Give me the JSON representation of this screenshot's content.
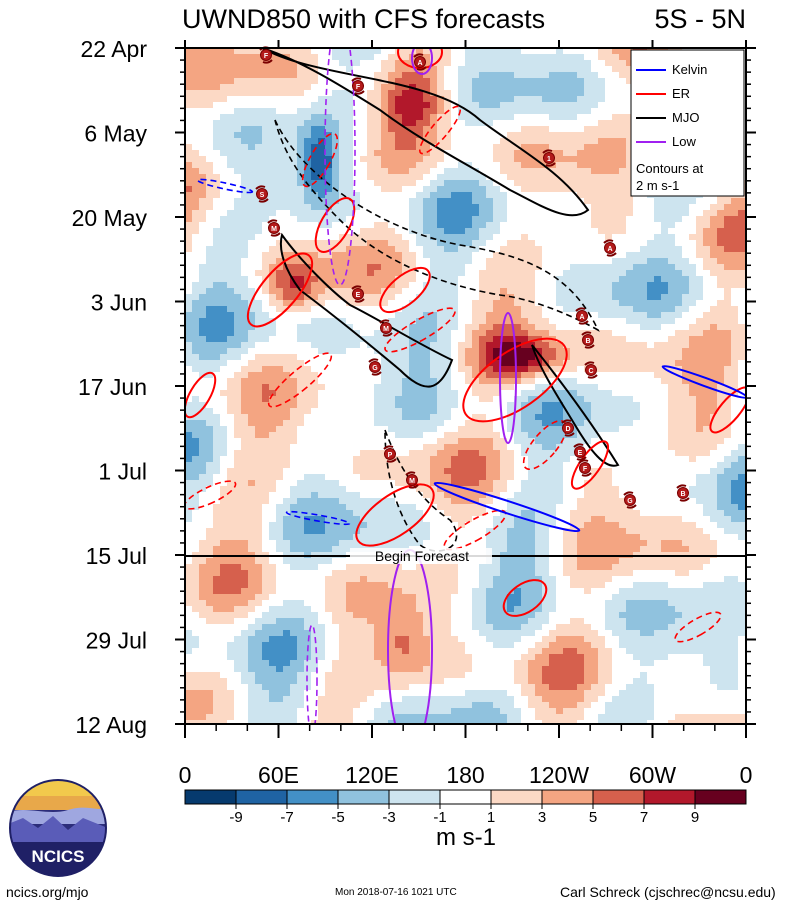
{
  "chart_data": {
    "type": "heatmap",
    "title": "UWND850 with CFS forecasts",
    "region": "5S - 5N",
    "y_labels": [
      "22 Apr",
      "6 May",
      "20 May",
      "3 Jun",
      "17 Jun",
      "1 Jul",
      "15 Jul",
      "29 Jul",
      "12 Aug"
    ],
    "x_labels": [
      "0",
      "60E",
      "120E",
      "180",
      "120W",
      "60W",
      "0"
    ],
    "colorbar_ticks": [
      "-9",
      "-7",
      "-5",
      "-3",
      "-1",
      "1",
      "3",
      "5",
      "7",
      "9"
    ],
    "colorbar_colors": [
      "#063a6e",
      "#1f63a3",
      "#4390c6",
      "#90c2de",
      "#cde4ef",
      "#ffffff",
      "#fcd9c5",
      "#f4a582",
      "#d6604d",
      "#b2182b",
      "#67001f"
    ],
    "units": "m s-1",
    "forecast_label": "Begin Forecast",
    "legend": {
      "entries": [
        {
          "label": "Kelvin",
          "color": "#0000ff"
        },
        {
          "label": "ER",
          "color": "#ff0000"
        },
        {
          "label": "MJO",
          "color": "#000000"
        },
        {
          "label": "Low",
          "color": "#a020f0"
        }
      ],
      "note_line1": "Contours at",
      "note_line2": "2 m s-1"
    },
    "storms": [
      {
        "letter": "F"
      },
      {
        "letter": "F"
      },
      {
        "letter": "1"
      },
      {
        "letter": "A"
      },
      {
        "letter": "S"
      },
      {
        "letter": "M"
      },
      {
        "letter": "A"
      },
      {
        "letter": "E"
      },
      {
        "letter": "M"
      },
      {
        "letter": "A"
      },
      {
        "letter": "B"
      },
      {
        "letter": "C"
      },
      {
        "letter": "G"
      },
      {
        "letter": "D"
      },
      {
        "letter": "E"
      },
      {
        "letter": "F"
      },
      {
        "letter": "P"
      },
      {
        "letter": "M"
      },
      {
        "letter": "G"
      },
      {
        "letter": "B"
      }
    ]
  },
  "footer": {
    "url": "ncics.org/mjo",
    "timestamp": "Mon 2018-07-16 1021 UTC",
    "author": "Carl Schreck (cjschrec@ncsu.edu)"
  },
  "logo": {
    "text": "NCICS"
  }
}
